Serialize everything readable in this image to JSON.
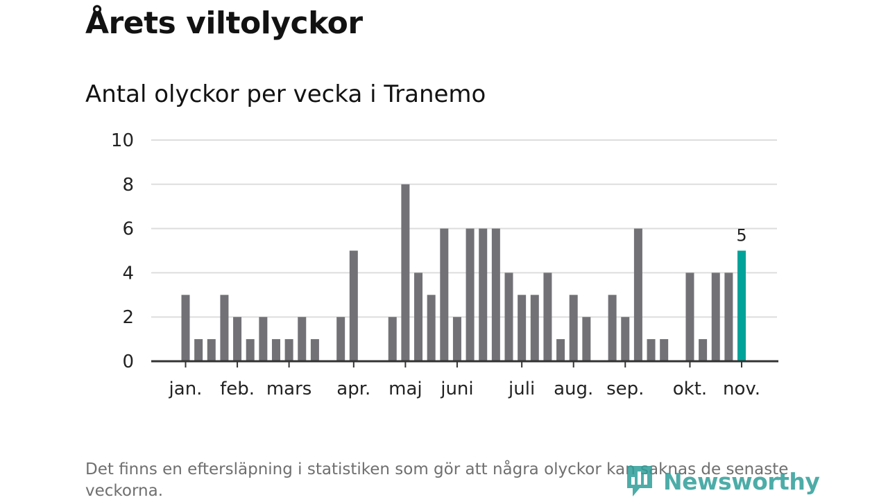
{
  "title": "Årets viltolyckor",
  "subtitle": "Antal olyckor per vecka i Tranemo",
  "footnote": "Det finns en eftersläpning i statistiken som gör att några olyckor kan saknas de senaste veckorna.",
  "logo": {
    "text": "Newsworthy",
    "icon": "newsworthy-logo-icon"
  },
  "colors": {
    "bar": "#727176",
    "highlight": "#00a39a",
    "grid": "#dddddd",
    "axis": "#333333"
  },
  "chart_data": {
    "type": "bar",
    "title": "Antal olyckor per vecka i Tranemo",
    "xlabel": "",
    "ylabel": "",
    "ylim": [
      0,
      10
    ],
    "yticks": [
      0,
      2,
      4,
      6,
      8,
      10
    ],
    "grid": true,
    "values": [
      3,
      1,
      1,
      3,
      2,
      1,
      2,
      1,
      1,
      2,
      1,
      0,
      2,
      5,
      0,
      0,
      2,
      8,
      4,
      3,
      6,
      2,
      6,
      6,
      6,
      4,
      3,
      3,
      4,
      1,
      3,
      2,
      0,
      3,
      2,
      6,
      1,
      1,
      0,
      4,
      1,
      4,
      4,
      5
    ],
    "highlight_index": 43,
    "highlight_label": "5",
    "month_ticks": [
      {
        "label": "jan.",
        "week": 0
      },
      {
        "label": "feb.",
        "week": 4
      },
      {
        "label": "mars",
        "week": 8
      },
      {
        "label": "apr.",
        "week": 13
      },
      {
        "label": "maj",
        "week": 17
      },
      {
        "label": "juni",
        "week": 21
      },
      {
        "label": "juli",
        "week": 26
      },
      {
        "label": "aug.",
        "week": 30
      },
      {
        "label": "sep.",
        "week": 34
      },
      {
        "label": "okt.",
        "week": 39
      },
      {
        "label": "nov.",
        "week": 43
      }
    ]
  }
}
